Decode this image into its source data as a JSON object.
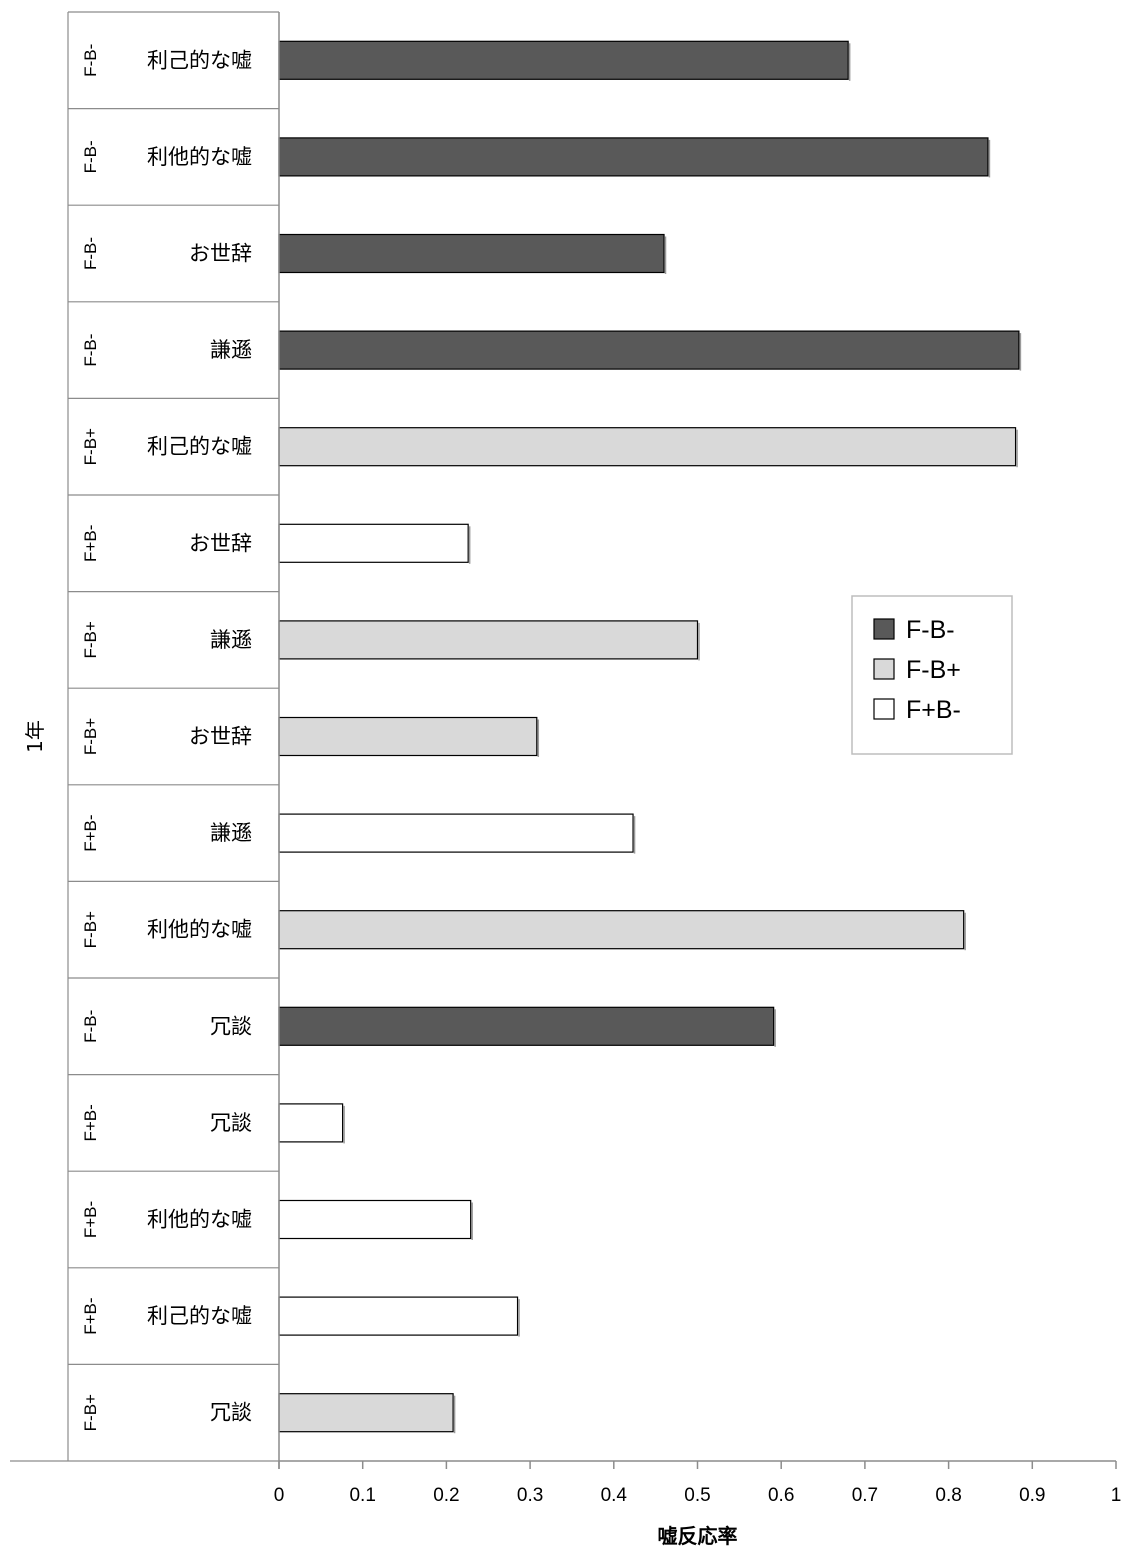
{
  "chart_data": {
    "type": "bar",
    "orientation": "horizontal",
    "group_label": "1年",
    "xlabel": "嘘反応率",
    "ylabel": "",
    "xlim": [
      0,
      1
    ],
    "xticks": [
      "0",
      "0.1",
      "0.2",
      "0.3",
      "0.4",
      "0.5",
      "0.6",
      "0.7",
      "0.8",
      "0.9",
      "1"
    ],
    "grid": false,
    "legend_position": "right",
    "series": [
      {
        "name": "F-B-",
        "color": "#595959"
      },
      {
        "name": "F-B+",
        "color": "#d9d9d9"
      },
      {
        "name": "F+B-",
        "color": "#ffffff"
      }
    ],
    "bars": [
      {
        "condition": "F-B-",
        "category": "利己的な嘘",
        "value": 0.68
      },
      {
        "condition": "F-B-",
        "category": "利他的な嘘",
        "value": 0.847
      },
      {
        "condition": "F-B-",
        "category": "お世辞",
        "value": 0.46
      },
      {
        "condition": "F-B-",
        "category": "謙遜",
        "value": 0.884
      },
      {
        "condition": "F-B+",
        "category": "利己的な嘘",
        "value": 0.88
      },
      {
        "condition": "F+B-",
        "category": "お世辞",
        "value": 0.226
      },
      {
        "condition": "F-B+",
        "category": "謙遜",
        "value": 0.5
      },
      {
        "condition": "F-B+",
        "category": "お世辞",
        "value": 0.308
      },
      {
        "condition": "F+B-",
        "category": "謙遜",
        "value": 0.423
      },
      {
        "condition": "F-B+",
        "category": "利他的な嘘",
        "value": 0.818
      },
      {
        "condition": "F-B-",
        "category": "冗談",
        "value": 0.591
      },
      {
        "condition": "F+B-",
        "category": "冗談",
        "value": 0.076
      },
      {
        "condition": "F+B-",
        "category": "利他的な嘘",
        "value": 0.229
      },
      {
        "condition": "F+B-",
        "category": "利己的な嘘",
        "value": 0.285
      },
      {
        "condition": "F-B+",
        "category": "冗談",
        "value": 0.208
      }
    ]
  }
}
